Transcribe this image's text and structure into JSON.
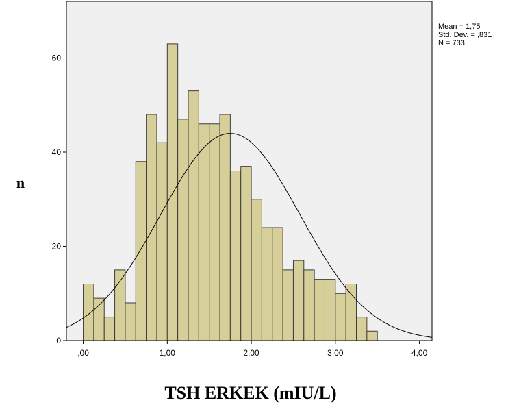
{
  "chart_data": {
    "type": "bar",
    "chart_subtype": "histogram",
    "xlabel": "TSH ERKEK (mIU/L)",
    "ylabel": "n",
    "xlim": [
      -0.2,
      4.15
    ],
    "ylim": [
      0,
      72
    ],
    "x_ticks": [
      0,
      1,
      2,
      3,
      4
    ],
    "x_tick_labels": [
      ",00",
      "1,00",
      "2,00",
      "3,00",
      "4,00"
    ],
    "y_ticks": [
      0,
      20,
      40,
      60
    ],
    "y_tick_labels": [
      "0",
      "20",
      "40",
      "60"
    ],
    "bin_width": 0.125,
    "bin_starts": [
      0,
      0.125,
      0.25,
      0.375,
      0.5,
      0.625,
      0.75,
      0.875,
      1.0,
      1.125,
      1.25,
      1.375,
      1.5,
      1.625,
      1.75,
      1.875,
      2.0,
      2.125,
      2.25,
      2.375,
      2.5,
      2.625,
      2.75,
      2.875,
      3.0,
      3.125,
      3.25,
      3.375,
      3.5,
      3.625,
      3.75,
      3.875
    ],
    "values": [
      12,
      9,
      5,
      15,
      8,
      38,
      48,
      42,
      63,
      47,
      53,
      46,
      46,
      48,
      36,
      37,
      30,
      24,
      24,
      15,
      17,
      15,
      13,
      13,
      10,
      12,
      5,
      2,
      0,
      0,
      0,
      0
    ],
    "normal_curve": {
      "mean": 1.75,
      "sd": 0.831,
      "n": 733
    },
    "stats_box": [
      "Mean = 1,75",
      "Std. Dev. = ,831",
      "N = 733"
    ],
    "colors": {
      "bar_fill": "#d6cf9a",
      "bar_stroke": "#3c3c3c",
      "plot_background": "#f0f0f0",
      "curve": "#000000"
    },
    "grid": false,
    "legend": "none"
  }
}
